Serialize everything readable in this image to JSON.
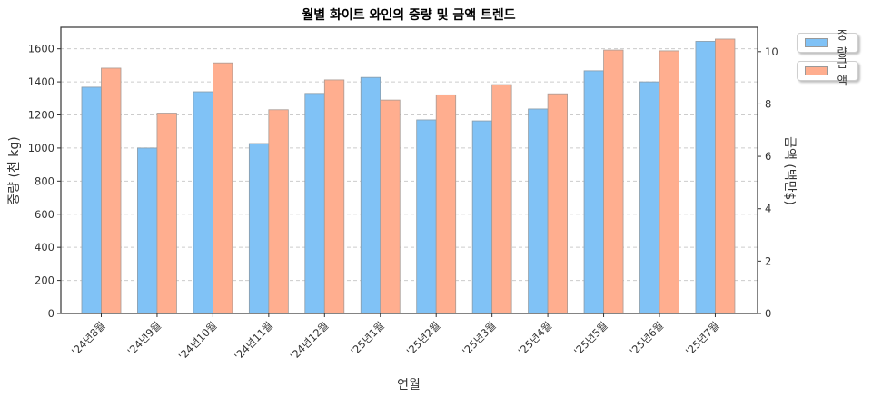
{
  "chart_data": {
    "type": "bar",
    "title": "월별 화이트 와인의 중량 및 금액 트렌드",
    "xlabel": "연월",
    "ylabel": "중량 (천 kg)",
    "y2label": "금액 (백만$)",
    "categories": [
      "'24년8월",
      "'24년9월",
      "'24년10월",
      "'24년11월",
      "'24년12월",
      "'25년1월",
      "'25년2월",
      "'25년3월",
      "'25년4월",
      "'25년5월",
      "'25년6월",
      "'25년7월"
    ],
    "series": [
      {
        "name": "중량",
        "axis": "left",
        "color": "#80c2f6",
        "values": [
          1368,
          1000,
          1340,
          1027,
          1330,
          1427,
          1170,
          1164,
          1236,
          1467,
          1400,
          1645
        ]
      },
      {
        "name": "금액",
        "axis": "right",
        "color": "#ffae8f",
        "values": [
          9.37,
          7.65,
          9.57,
          7.78,
          8.92,
          8.15,
          8.35,
          8.74,
          8.39,
          10.06,
          10.03,
          10.48
        ]
      }
    ],
    "ylim": [
      0,
      1730
    ],
    "y2lim": [
      0,
      10.93
    ],
    "yticks": [
      0,
      200,
      400,
      600,
      800,
      1000,
      1200,
      1400,
      1600
    ],
    "y2ticks": [
      0,
      2,
      4,
      6,
      8,
      10
    ],
    "grid": "y dashed",
    "legend_position": "upper right outside"
  },
  "legend": {
    "items": [
      {
        "label": "중량",
        "color": "#80c2f6"
      },
      {
        "label": "금액",
        "color": "#ffae8f"
      }
    ]
  }
}
